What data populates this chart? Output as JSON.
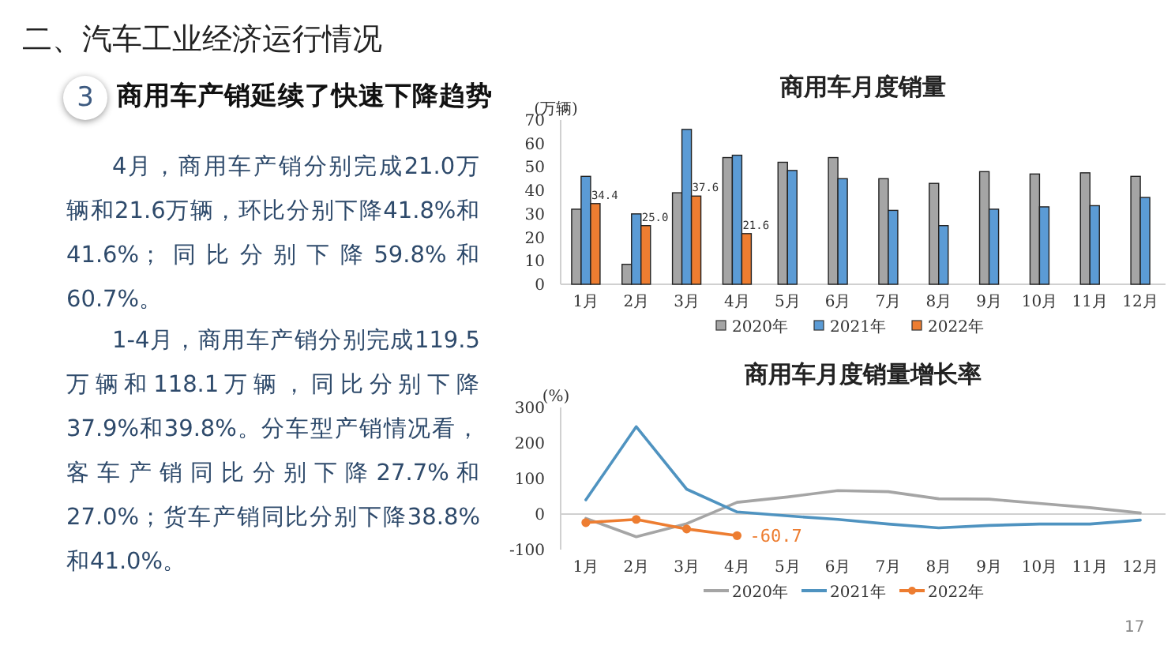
{
  "chart_data": [
    {
      "type": "other",
      "title": "二、汽车工业经济运行情况",
      "subtitle": "商用车产销延续了快速下降趋势",
      "annotations": [
        "3",
        "4月，商用车产销分别完成21.0万辆和21.6万辆，环比分别下降41.8%和41.6%；同比分别下降59.8%和60.7%。",
        "1-4月，商用车产销分别完成119.5万辆和118.1万辆，同比分别下降37.9%和39.8%。分车型产销情况看，客车产销同比分别下降27.7%和27.0%；货车产销同比分别下降38.8%和41.0%。",
        "17"
      ]
    },
    {
      "type": "bar",
      "title": "商用车月度销量",
      "ylabel": "(万辆)",
      "categories": [
        "1月",
        "2月",
        "3月",
        "4月",
        "5月",
        "6月",
        "7月",
        "8月",
        "9月",
        "10月",
        "11月",
        "12月"
      ],
      "ylim": [
        0,
        70
      ],
      "yticks": [
        0,
        10,
        20,
        30,
        40,
        50,
        60,
        70
      ],
      "legend": "bottom",
      "series": [
        {
          "name": "2020年",
          "color": "#a5a5a5",
          "values": [
            32,
            8.5,
            39,
            54,
            52,
            54,
            45,
            43,
            48,
            47,
            47.5,
            46
          ]
        },
        {
          "name": "2021年",
          "color": "#5b9bd5",
          "values": [
            46,
            30,
            66,
            55,
            48.5,
            45,
            31.5,
            25,
            32,
            33,
            33.5,
            37
          ]
        },
        {
          "name": "2022年",
          "color": "#ed7d31",
          "values": [
            34.4,
            25.0,
            37.6,
            21.6,
            null,
            null,
            null,
            null,
            null,
            null,
            null,
            null
          ],
          "value_labels": [
            "34.4",
            "25.0",
            "37.6",
            "21.6",
            null,
            null,
            null,
            null,
            null,
            null,
            null,
            null
          ]
        }
      ]
    },
    {
      "type": "line",
      "title": "商用车月度销量增长率",
      "ylabel": "(%)",
      "categories": [
        "1月",
        "2月",
        "3月",
        "4月",
        "5月",
        "6月",
        "7月",
        "8月",
        "9月",
        "10月",
        "11月",
        "12月"
      ],
      "ylim": [
        -100,
        300
      ],
      "yticks": [
        -100,
        0,
        100,
        200,
        300
      ],
      "legend": "bottom",
      "series": [
        {
          "name": "2020年",
          "color": "#a5a5a5",
          "marker": "none",
          "values": [
            -12,
            -64,
            -27,
            33,
            48,
            66,
            63,
            43,
            42,
            30,
            18,
            3
          ]
        },
        {
          "name": "2021年",
          "color": "#4f93c0",
          "marker": "none",
          "values": [
            40,
            246,
            70,
            6,
            -5,
            -15,
            -28,
            -39,
            -32,
            -28,
            -28,
            -17
          ]
        },
        {
          "name": "2022年",
          "color": "#ed7d31",
          "marker": "circle",
          "values": [
            -24,
            -15,
            -42,
            -60.7,
            null,
            null,
            null,
            null,
            null,
            null,
            null,
            null
          ],
          "value_labels": [
            null,
            null,
            null,
            "-60.7",
            null,
            null,
            null,
            null,
            null,
            null,
            null,
            null
          ]
        }
      ]
    }
  ]
}
